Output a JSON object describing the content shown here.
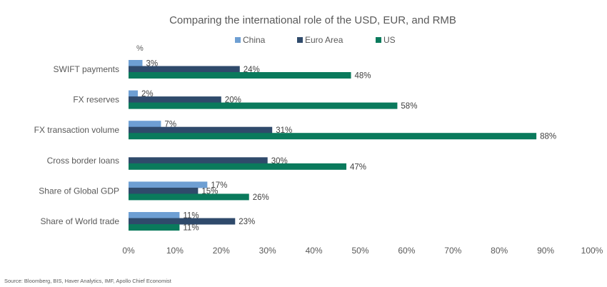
{
  "chart_data": {
    "type": "bar",
    "orientation": "horizontal",
    "title": "Comparing the international role of the USD, EUR, and RMB",
    "unit": "%",
    "categories": [
      "SWIFT payments",
      "FX reserves",
      "FX transaction volume",
      "Cross border loans",
      "Share of Global GDP",
      "Share of World trade"
    ],
    "series": [
      {
        "name": "China",
        "color": "#6e9fd3",
        "values": [
          3,
          2,
          7,
          null,
          17,
          11
        ]
      },
      {
        "name": "Euro Area",
        "color": "#2f4a6b",
        "values": [
          24,
          20,
          31,
          30,
          15,
          23
        ]
      },
      {
        "name": "US",
        "color": "#0a7a5c",
        "values": [
          48,
          58,
          88,
          47,
          26,
          11
        ]
      }
    ],
    "xlim": [
      0,
      100
    ],
    "xticks": [
      "0%",
      "10%",
      "20%",
      "30%",
      "40%",
      "50%",
      "60%",
      "70%",
      "80%",
      "90%",
      "100%"
    ],
    "value_suffix": "%",
    "legend_position": "top",
    "grid": false
  },
  "source": "Source: Bloomberg, BIS, Haver Analytics, IMF, Apollo Chief Economist"
}
